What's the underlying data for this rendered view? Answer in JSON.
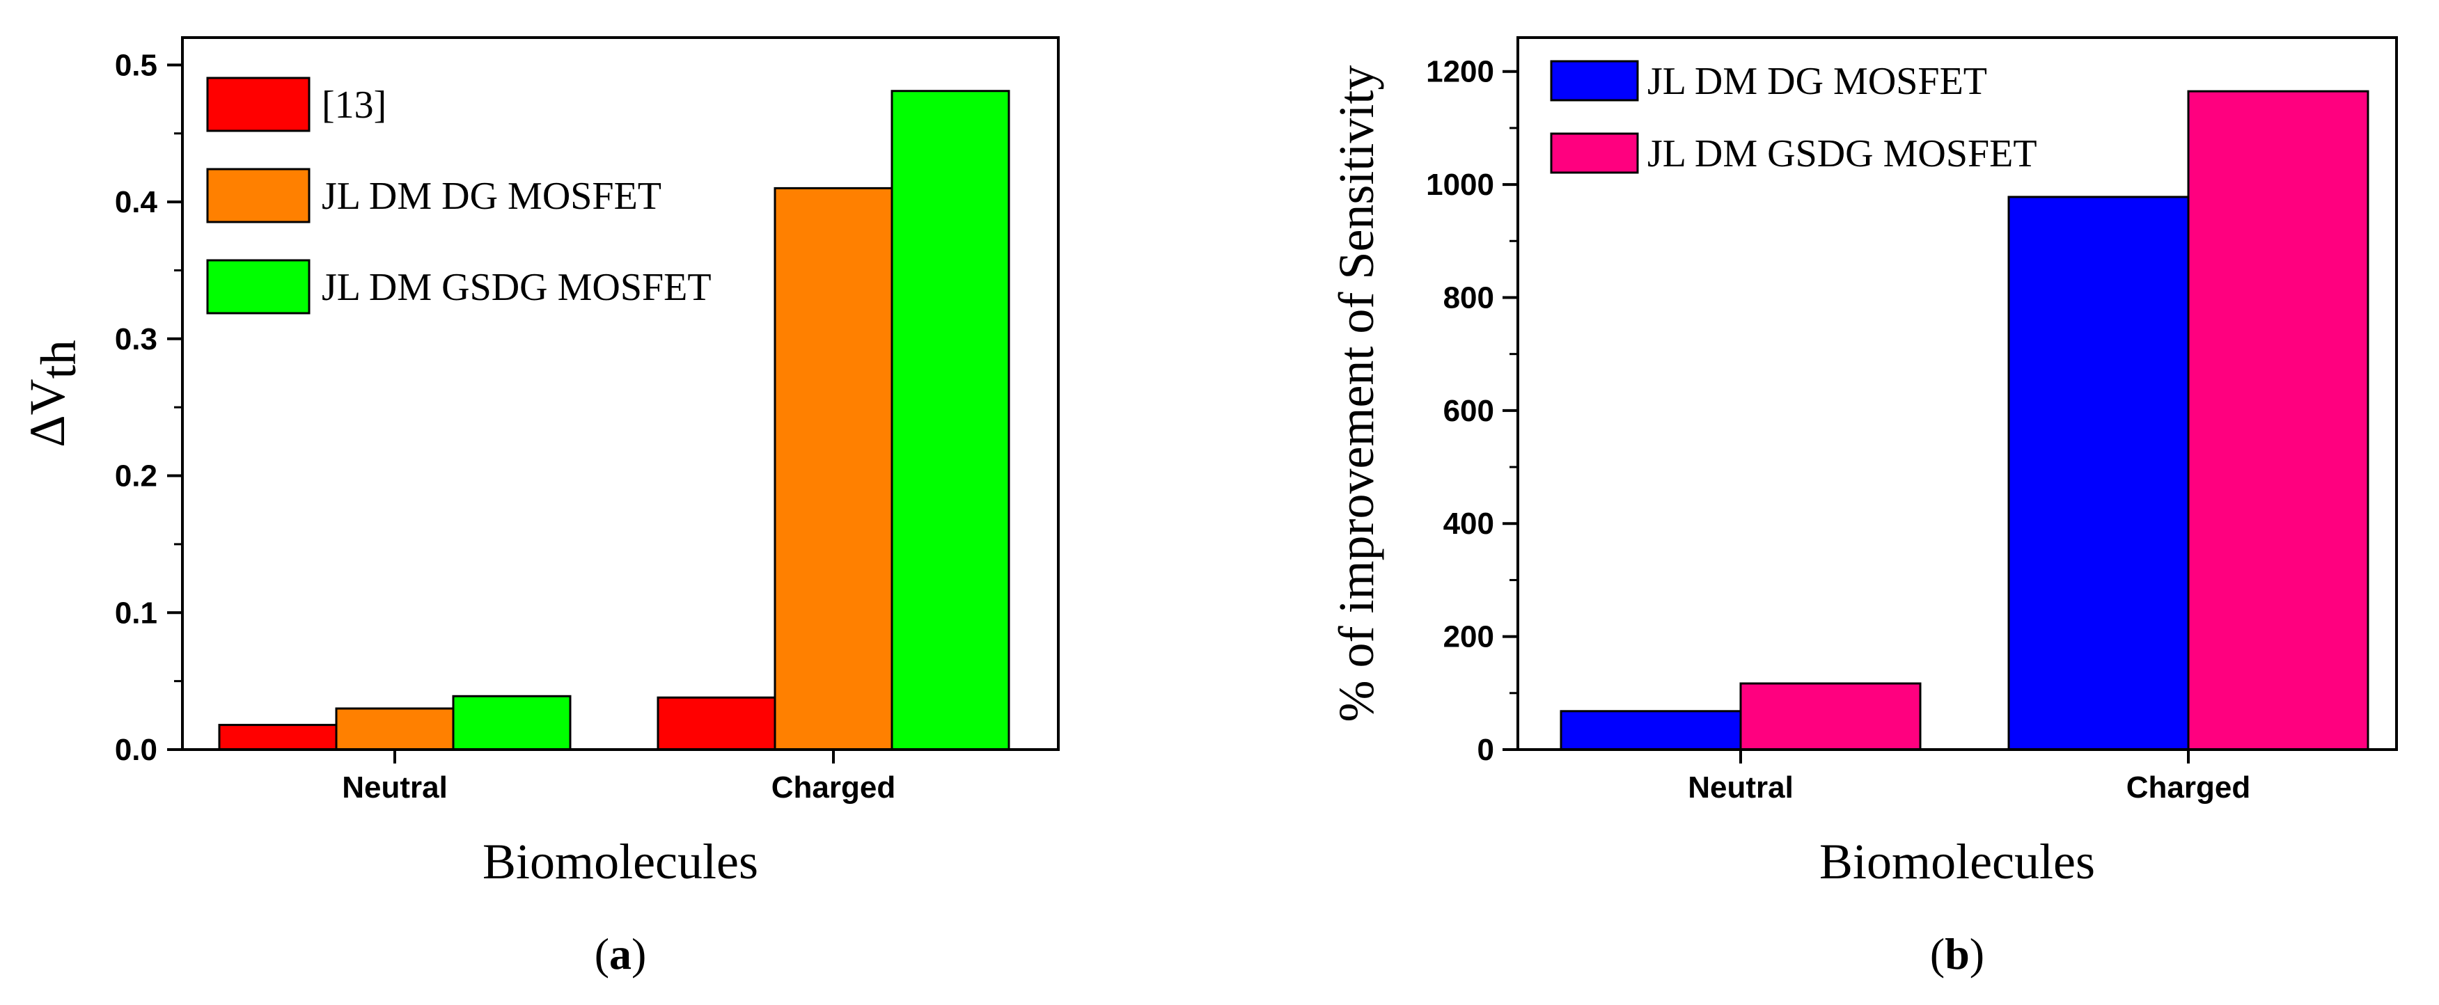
{
  "chart_data": [
    {
      "type": "bar",
      "panel_label": "a",
      "categories": [
        "Neutral",
        "Charged"
      ],
      "series": [
        {
          "name": "[13]",
          "color": "#ff0000",
          "values": [
            0.018,
            0.038
          ]
        },
        {
          "name": "JL DM DG MOSFET",
          "color": "#ff8000",
          "values": [
            0.03,
            0.41
          ]
        },
        {
          "name": "JL DM GSDG MOSFET",
          "color": "#00ff00",
          "values": [
            0.039,
            0.481
          ]
        }
      ],
      "xlabel": "Biomolecules",
      "ylabel": {
        "main": "ΔV",
        "sub": "th"
      },
      "ylim": [
        0,
        0.52
      ],
      "yticks": [
        0.0,
        0.1,
        0.2,
        0.3,
        0.4,
        0.5
      ],
      "ytick_labels": [
        "0.0",
        "0.1",
        "0.2",
        "0.3",
        "0.4",
        "0.5"
      ],
      "legend_position": "top-left",
      "grid": false
    },
    {
      "type": "bar",
      "panel_label": "b",
      "categories": [
        "Neutral",
        "Charged"
      ],
      "series": [
        {
          "name": "JL DM DG MOSFET",
          "color": "#0000ff",
          "values": [
            68,
            978
          ]
        },
        {
          "name": "JL DM GSDG MOSFET",
          "color": "#ff007f",
          "values": [
            117,
            1165
          ]
        }
      ],
      "xlabel": "Biomolecules",
      "ylabel": "% of improvement of Sensitivity",
      "ylim": [
        0,
        1260
      ],
      "yticks": [
        0,
        200,
        400,
        600,
        800,
        1000,
        1200
      ],
      "ytick_labels": [
        "0",
        "200",
        "400",
        "600",
        "800",
        "1000",
        "1200"
      ],
      "legend_position": "top-left",
      "grid": false
    }
  ]
}
